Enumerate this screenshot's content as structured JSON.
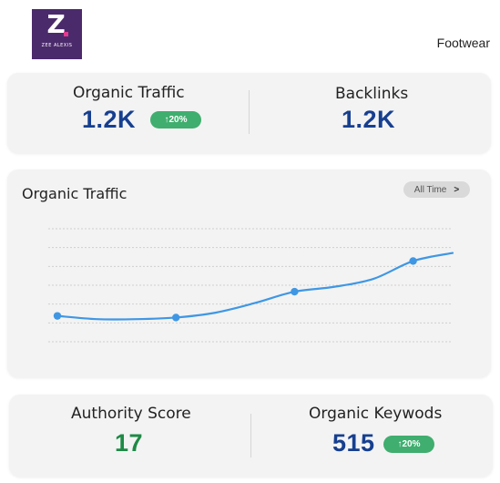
{
  "brand": {
    "logo_letter": "Z",
    "logo_text": "ZEE ALEXIS"
  },
  "category": "Footwear",
  "top_card": {
    "organic_traffic": {
      "label": "Organic Traffic",
      "value": "1.2K",
      "badge": "↑20%"
    },
    "backlinks": {
      "label": "Backlinks",
      "value": "1.2K"
    }
  },
  "chart": {
    "title": "Organic Traffic",
    "range_label": "All Time",
    "range_icon": "chevron-right-icon"
  },
  "chart_data": {
    "type": "line",
    "title": "Organic Traffic",
    "xlabel": "",
    "ylabel": "",
    "grid": true,
    "legend": "none",
    "x": [
      0,
      1,
      2,
      3,
      4,
      5,
      6,
      7,
      8,
      9,
      10
    ],
    "ylim": [
      0,
      7
    ],
    "series": [
      {
        "values": [
          1.6,
          1.4,
          1.4,
          1.5,
          1.8,
          2.4,
          3.1,
          3.4,
          3.9,
          5.0,
          5.5
        ],
        "markers_at": [
          0,
          3,
          6,
          9
        ]
      }
    ]
  },
  "bottom_card": {
    "authority_score": {
      "label": "Authority Score",
      "value": "17"
    },
    "organic_keywords": {
      "label": "Organic Keywods",
      "value": "515",
      "badge": "↑20%"
    }
  },
  "colors": {
    "value_blue": "#163f8f",
    "value_green": "#1d8a45",
    "badge_green": "#3fae6e",
    "line_blue": "#3f97e4",
    "logo_purple": "#4b2a6b",
    "logo_dot": "#e23a8e"
  }
}
